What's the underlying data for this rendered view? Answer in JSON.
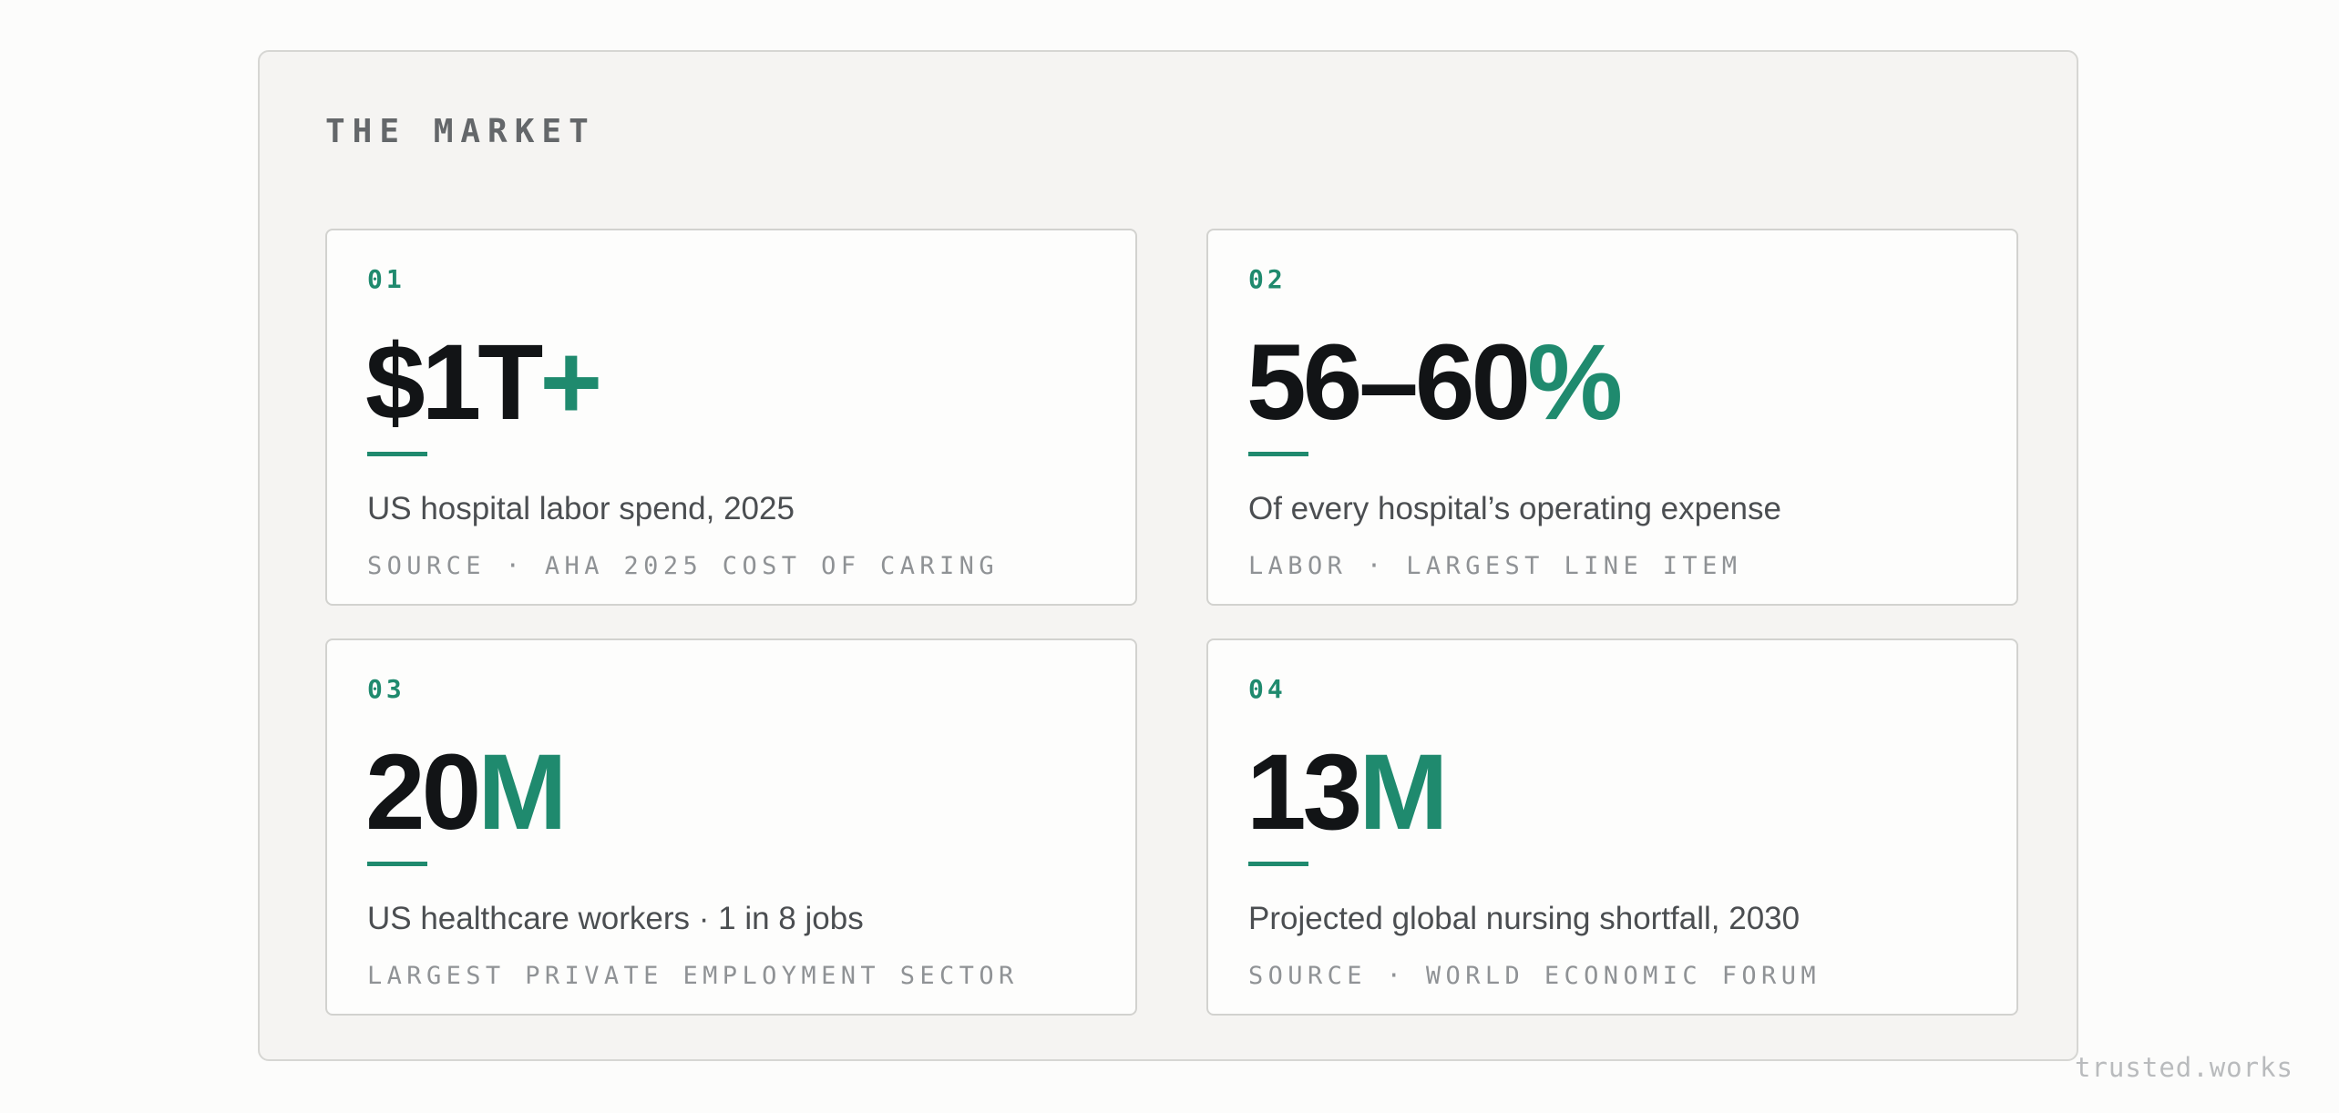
{
  "section": {
    "title": "THE MARKET"
  },
  "colors": {
    "accent": "#1f8a6e",
    "text_primary": "#121416",
    "text_secondary": "#4b4e51",
    "text_muted": "#8f9295"
  },
  "cards": [
    {
      "number": "01",
      "value_main": "$1T",
      "value_accent": "+",
      "description": "US hospital labor spend, 2025",
      "meta": "SOURCE · AHA 2025 COST OF CARING"
    },
    {
      "number": "02",
      "value_main": "56–60",
      "value_accent": "%",
      "description": "Of every hospital’s operating expense",
      "meta": "LABOR · LARGEST LINE ITEM"
    },
    {
      "number": "03",
      "value_main": "20",
      "value_accent": "M",
      "description": "US healthcare workers · 1 in 8 jobs",
      "meta": "LARGEST PRIVATE EMPLOYMENT SECTOR"
    },
    {
      "number": "04",
      "value_main": "13",
      "value_accent": "M",
      "description": "Projected global nursing shortfall, 2030",
      "meta": "SOURCE · WORLD ECONOMIC FORUM"
    }
  ],
  "footer": {
    "watermark": "trusted.works"
  }
}
